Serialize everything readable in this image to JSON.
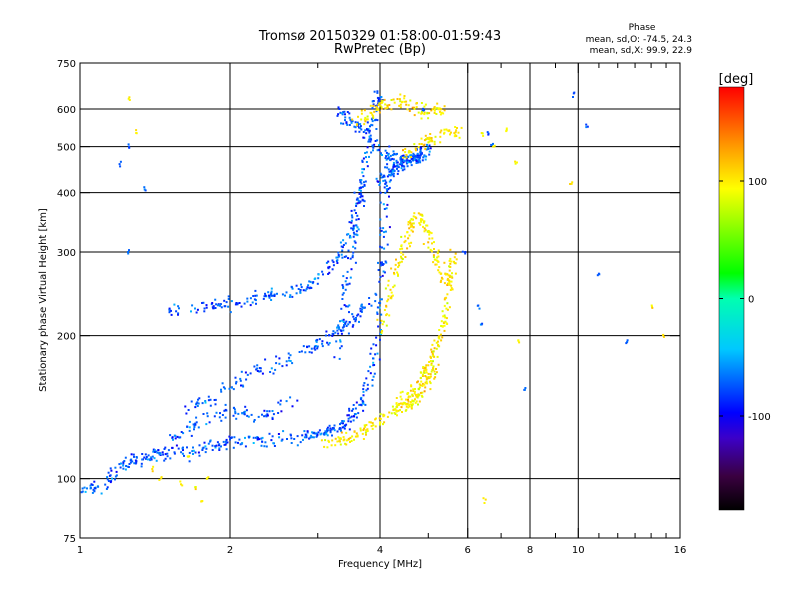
{
  "chart_data": {
    "type": "scatter",
    "title_line1": "Tromsø 20150329 01:58:00-01:59:43",
    "title_line2": "RwPretec (Bp)",
    "stats_heading": "Phase",
    "stats_line1": "mean, sd,O: -74.5, 24.3",
    "stats_line2": "mean, sd,X:  99.9, 22.9",
    "xlabel": "Frequency [MHz]",
    "ylabel": "Stationary phase Virtual Height [km]",
    "xscale": "log2",
    "yscale": "log",
    "xlim": [
      1,
      16
    ],
    "ylim": [
      75,
      750
    ],
    "xticks": [
      {
        "value": 1,
        "label": "1"
      },
      {
        "value": 2,
        "label": "2"
      },
      {
        "value": 4,
        "label": "4"
      },
      {
        "value": 6,
        "label": "6"
      },
      {
        "value": 8,
        "label": "8"
      },
      {
        "value": 10,
        "label": "10"
      },
      {
        "value": 16,
        "label": "16"
      }
    ],
    "xminor": [
      3,
      5,
      7,
      9,
      11,
      12,
      13,
      14,
      15
    ],
    "xgrid": [
      2,
      4,
      6,
      8,
      10
    ],
    "yticks": [
      {
        "value": 75,
        "label": "75"
      },
      {
        "value": 100,
        "label": "100"
      },
      {
        "value": 200,
        "label": "200"
      },
      {
        "value": 300,
        "label": "300"
      },
      {
        "value": 400,
        "label": "400"
      },
      {
        "value": 500,
        "label": "500"
      },
      {
        "value": 600,
        "label": "600"
      },
      {
        "value": 750,
        "label": "750"
      }
    ],
    "ygrid": [
      100,
      200,
      300,
      400,
      500,
      600
    ],
    "colorbar": {
      "label": "[deg]",
      "range": [
        -180,
        180
      ],
      "ticks": [
        {
          "value": 100,
          "label": "100"
        },
        {
          "value": 0,
          "label": "0"
        },
        {
          "value": -100,
          "label": "-100"
        }
      ]
    },
    "series": [
      {
        "name": "O-mode",
        "phase_mean": -74.5,
        "phase_sd": 24.3,
        "traces": [
          {
            "points": [
              [
                1.0,
                95
              ],
              [
                1.1,
                96
              ],
              [
                1.2,
                105
              ],
              [
                1.3,
                110
              ],
              [
                1.4,
                112
              ],
              [
                1.5,
                113
              ],
              [
                1.7,
                114
              ],
              [
                1.9,
                118
              ],
              [
                2.1,
                120
              ],
              [
                2.4,
                121
              ],
              [
                2.8,
                123
              ],
              [
                3.0,
                124
              ],
              [
                3.2,
                126
              ],
              [
                3.4,
                130
              ],
              [
                3.6,
                140
              ],
              [
                3.8,
                160
              ],
              [
                3.95,
                200
              ],
              [
                4.05,
                280
              ],
              [
                4.1,
                380
              ],
              [
                4.2,
                470
              ]
            ]
          },
          {
            "points": [
              [
                1.6,
                140
              ],
              [
                1.9,
                150
              ],
              [
                2.2,
                165
              ],
              [
                2.6,
                178
              ],
              [
                3.0,
                190
              ],
              [
                3.3,
                205
              ],
              [
                3.6,
                220
              ],
              [
                3.9,
                250
              ]
            ]
          },
          {
            "points": [
              [
                1.5,
                118
              ],
              [
                1.7,
                130
              ],
              [
                2.0,
                140
              ],
              [
                2.3,
                135
              ],
              [
                2.7,
                145
              ]
            ]
          },
          {
            "points": [
              [
                1.5,
                225
              ],
              [
                1.8,
                230
              ],
              [
                2.0,
                234
              ],
              [
                2.3,
                240
              ],
              [
                2.6,
                245
              ],
              [
                2.9,
                255
              ],
              [
                3.2,
                280
              ],
              [
                3.5,
                330
              ],
              [
                3.7,
                420
              ],
              [
                3.8,
                520
              ],
              [
                3.9,
                610
              ],
              [
                4.0,
                640
              ]
            ]
          },
          {
            "points": [
              [
                3.3,
                600
              ],
              [
                3.5,
                560
              ],
              [
                3.8,
                520
              ],
              [
                4.1,
                480
              ],
              [
                4.4,
                470
              ],
              [
                4.7,
                480
              ],
              [
                5.0,
                490
              ]
            ]
          },
          {
            "points": [
              [
                3.3,
                180
              ],
              [
                3.4,
                240
              ],
              [
                3.5,
                300
              ],
              [
                3.6,
                360
              ],
              [
                3.7,
                420
              ]
            ]
          },
          {
            "points": [
              [
                4.0,
                420
              ],
              [
                4.2,
                440
              ],
              [
                4.4,
                455
              ],
              [
                4.6,
                465
              ],
              [
                4.8,
                475
              ],
              [
                5.0,
                485
              ]
            ]
          }
        ],
        "isolated": [
          [
            1.25,
            500
          ],
          [
            1.25,
            300
          ],
          [
            1.35,
            410
          ],
          [
            1.2,
            460
          ],
          [
            4.9,
            600
          ],
          [
            5.9,
            300
          ],
          [
            9.8,
            640
          ],
          [
            10.4,
            550
          ],
          [
            6.3,
            230
          ],
          [
            6.4,
            210
          ],
          [
            11.0,
            270
          ],
          [
            12.5,
            195
          ],
          [
            7.8,
            155
          ],
          [
            6.6,
            530
          ],
          [
            6.7,
            505
          ]
        ]
      },
      {
        "name": "X-mode",
        "phase_mean": 99.9,
        "phase_sd": 22.9,
        "traces": [
          {
            "points": [
              [
                3.1,
                118
              ],
              [
                3.4,
                121
              ],
              [
                3.7,
                126
              ],
              [
                4.0,
                132
              ],
              [
                4.3,
                140
              ],
              [
                4.6,
                150
              ],
              [
                4.9,
                165
              ],
              [
                5.1,
                180
              ],
              [
                5.3,
                200
              ],
              [
                5.45,
                230
              ],
              [
                5.55,
                270
              ],
              [
                5.6,
                300
              ]
            ]
          },
          {
            "points": [
              [
                4.0,
                200
              ],
              [
                4.2,
                250
              ],
              [
                4.4,
                300
              ],
              [
                4.6,
                340
              ],
              [
                4.8,
                360
              ],
              [
                5.0,
                330
              ],
              [
                5.2,
                290
              ],
              [
                5.4,
                260
              ]
            ]
          },
          {
            "points": [
              [
                4.4,
                140
              ],
              [
                4.6,
                145
              ],
              [
                4.8,
                150
              ],
              [
                5.0,
                160
              ],
              [
                5.2,
                175
              ]
            ]
          },
          {
            "points": [
              [
                3.6,
                560
              ],
              [
                3.9,
                600
              ],
              [
                4.2,
                620
              ],
              [
                4.6,
                610
              ],
              [
                5.0,
                590
              ],
              [
                5.4,
                600
              ]
            ]
          },
          {
            "points": [
              [
                4.5,
                480
              ],
              [
                4.9,
                510
              ],
              [
                5.3,
                530
              ],
              [
                5.8,
                540
              ]
            ]
          }
        ],
        "isolated": [
          [
            1.6,
            98
          ],
          [
            1.7,
            95
          ],
          [
            1.75,
            90
          ],
          [
            1.8,
            100
          ],
          [
            1.4,
            105
          ],
          [
            1.65,
            112
          ],
          [
            1.25,
            630
          ],
          [
            1.3,
            535
          ],
          [
            6.4,
            530
          ],
          [
            6.8,
            500
          ],
          [
            7.5,
            460
          ],
          [
            7.2,
            540
          ],
          [
            9.7,
            420
          ],
          [
            6.5,
            90
          ],
          [
            14.8,
            200
          ],
          [
            14.0,
            230
          ],
          [
            7.6,
            195
          ],
          [
            1.45,
            100
          ]
        ]
      }
    ]
  }
}
